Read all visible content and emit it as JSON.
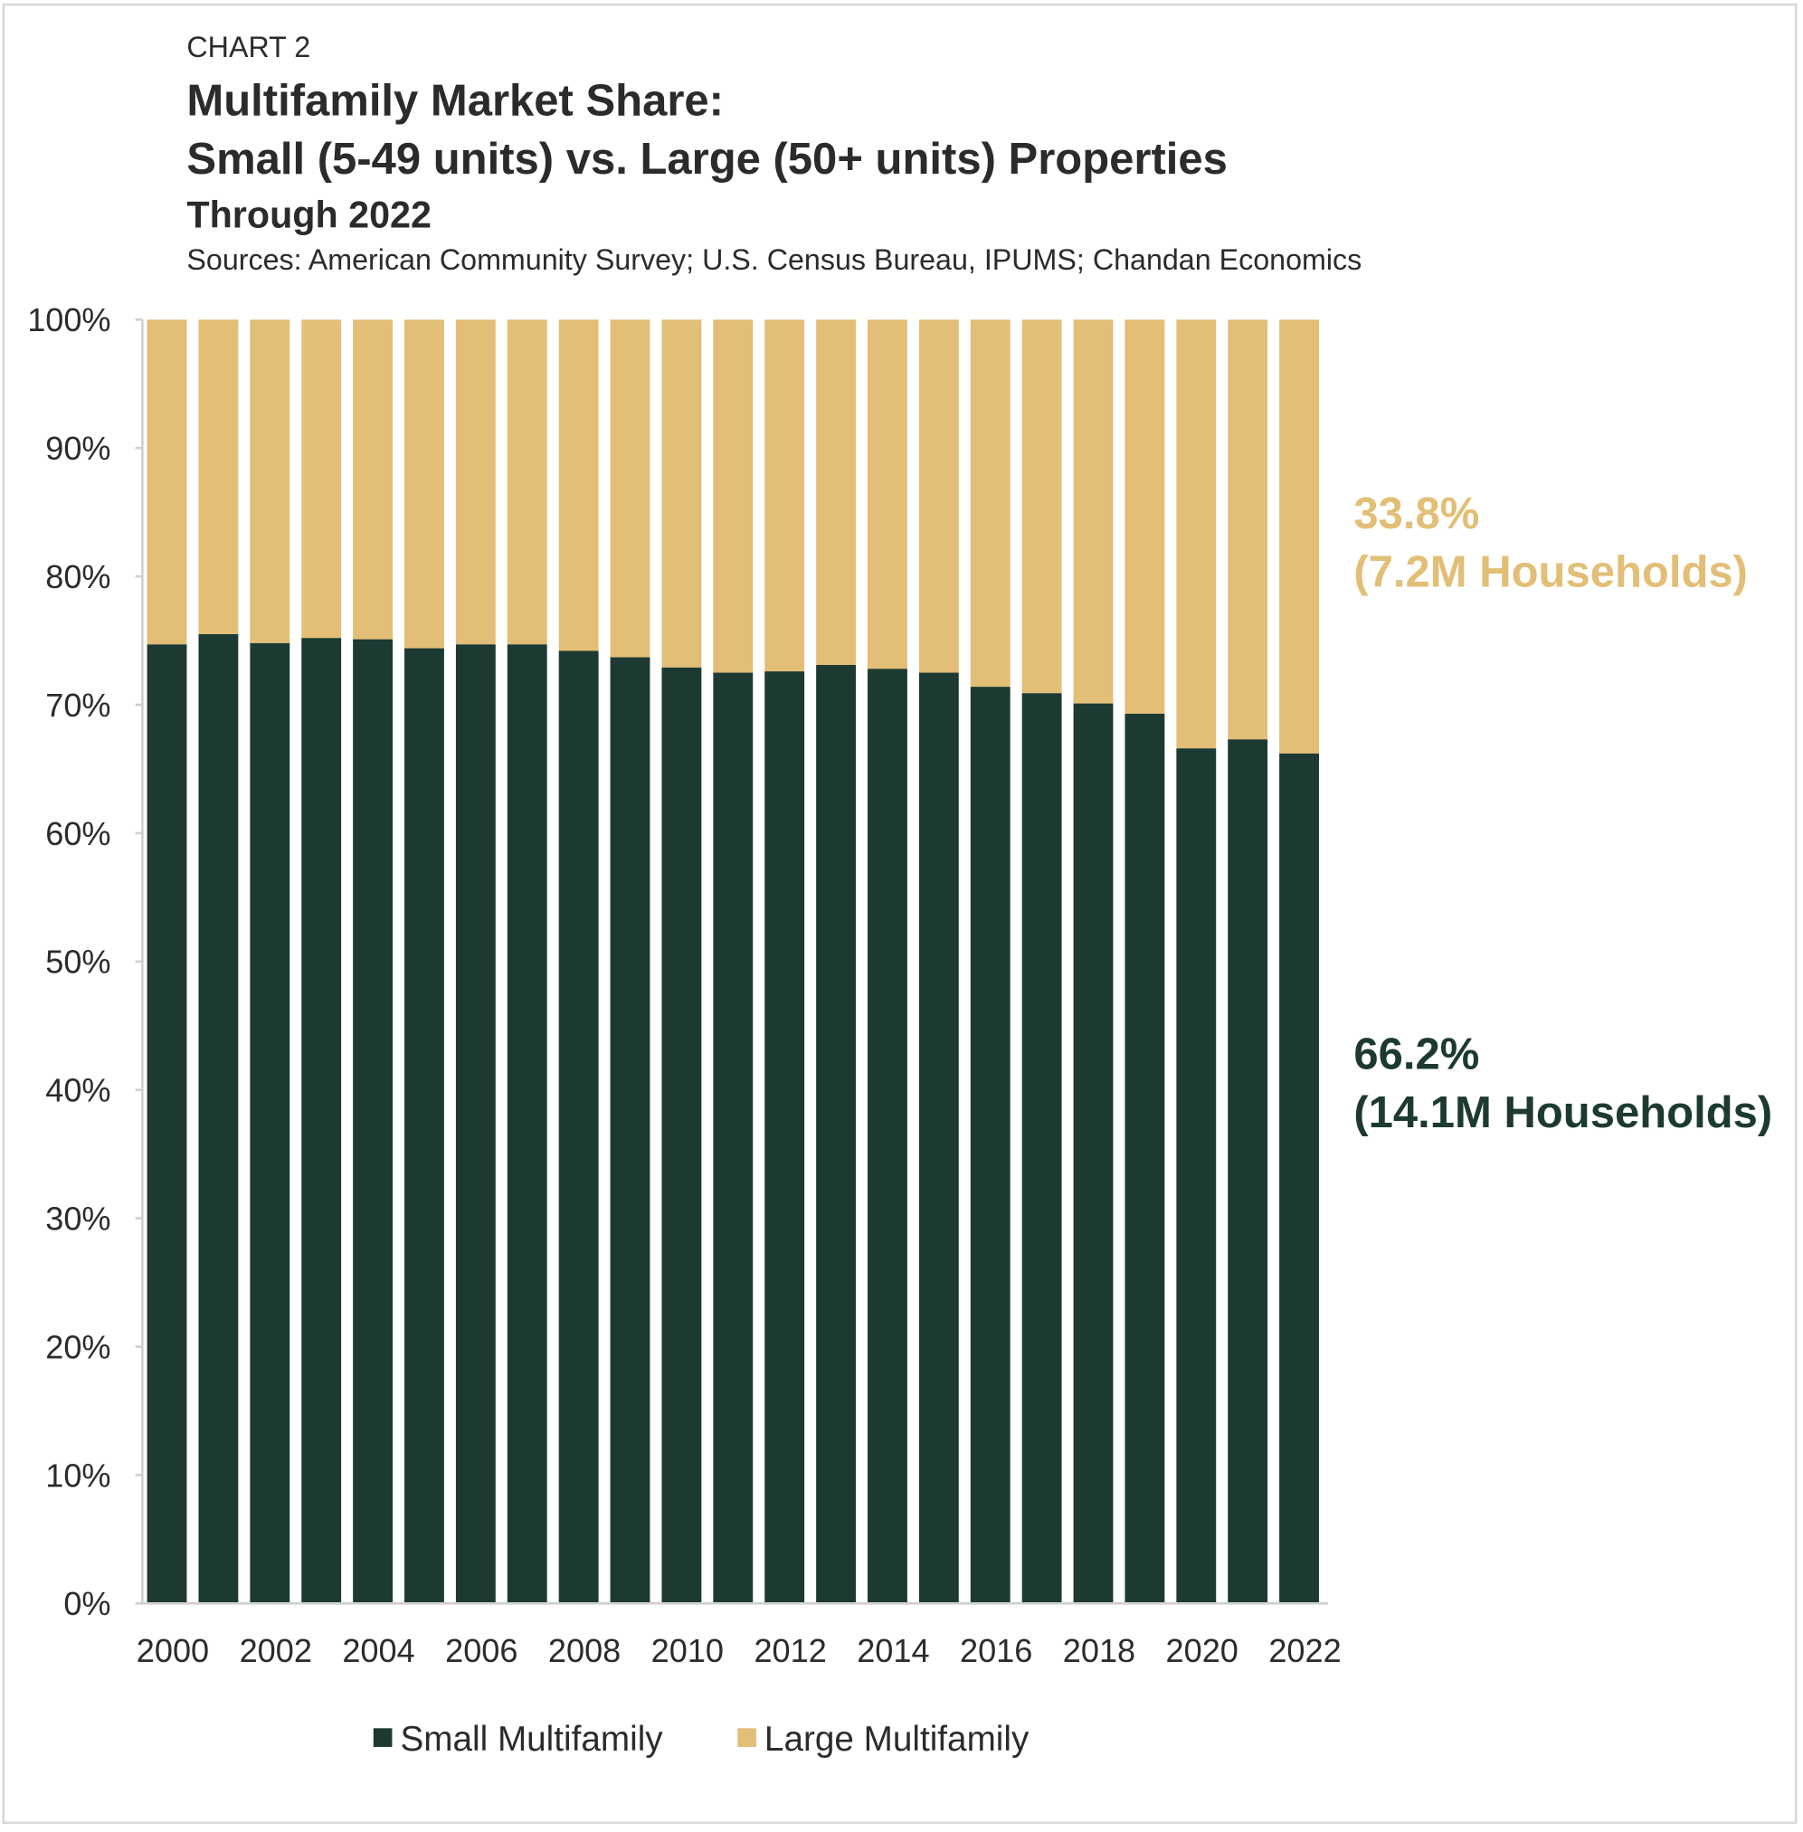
{
  "header": {
    "eyebrow": "CHART 2",
    "title_line1": "Multifamily Market Share:",
    "title_line2": "Small (5-49 units) vs. Large (50+ units) Properties",
    "subtitle": "Through 2022",
    "sources": "Sources: American Community Survey; U.S. Census Bureau, IPUMS; Chandan Economics"
  },
  "colors": {
    "small": "#1c3a31",
    "large": "#e2be76",
    "text": "#2b2b2b"
  },
  "chart_data": {
    "type": "bar",
    "stacked": true,
    "categories": [
      "2000",
      "2001",
      "2002",
      "2003",
      "2004",
      "2005",
      "2006",
      "2007",
      "2008",
      "2009",
      "2010",
      "2011",
      "2012",
      "2013",
      "2014",
      "2015",
      "2016",
      "2017",
      "2018",
      "2019",
      "2020",
      "2021",
      "2022"
    ],
    "x_tick_labels": [
      "2000",
      "2002",
      "2004",
      "2006",
      "2008",
      "2010",
      "2012",
      "2014",
      "2016",
      "2018",
      "2020",
      "2022"
    ],
    "y_tick_labels": [
      "0%",
      "10%",
      "20%",
      "30%",
      "40%",
      "50%",
      "60%",
      "70%",
      "80%",
      "90%",
      "100%"
    ],
    "ylim": [
      0,
      100
    ],
    "grid": false,
    "legend_position": "bottom",
    "series": [
      {
        "name": "Small Multifamily",
        "values": [
          74.7,
          75.5,
          74.8,
          75.2,
          75.1,
          74.4,
          74.7,
          74.7,
          74.2,
          73.7,
          72.9,
          72.5,
          72.6,
          73.1,
          72.8,
          72.5,
          71.4,
          70.9,
          70.1,
          69.3,
          66.6,
          67.3,
          66.2
        ]
      },
      {
        "name": "Large Multifamily",
        "values": [
          25.3,
          24.5,
          25.2,
          24.8,
          24.9,
          25.6,
          25.3,
          25.3,
          25.8,
          26.3,
          27.1,
          27.5,
          27.4,
          26.9,
          27.2,
          27.5,
          28.6,
          29.1,
          29.9,
          30.7,
          33.4,
          32.7,
          33.8
        ]
      }
    ],
    "annotations": {
      "large_pct": "33.8%",
      "large_hh": "(7.2M Households)",
      "small_pct": "66.2%",
      "small_hh": "(14.1M Households)"
    }
  }
}
